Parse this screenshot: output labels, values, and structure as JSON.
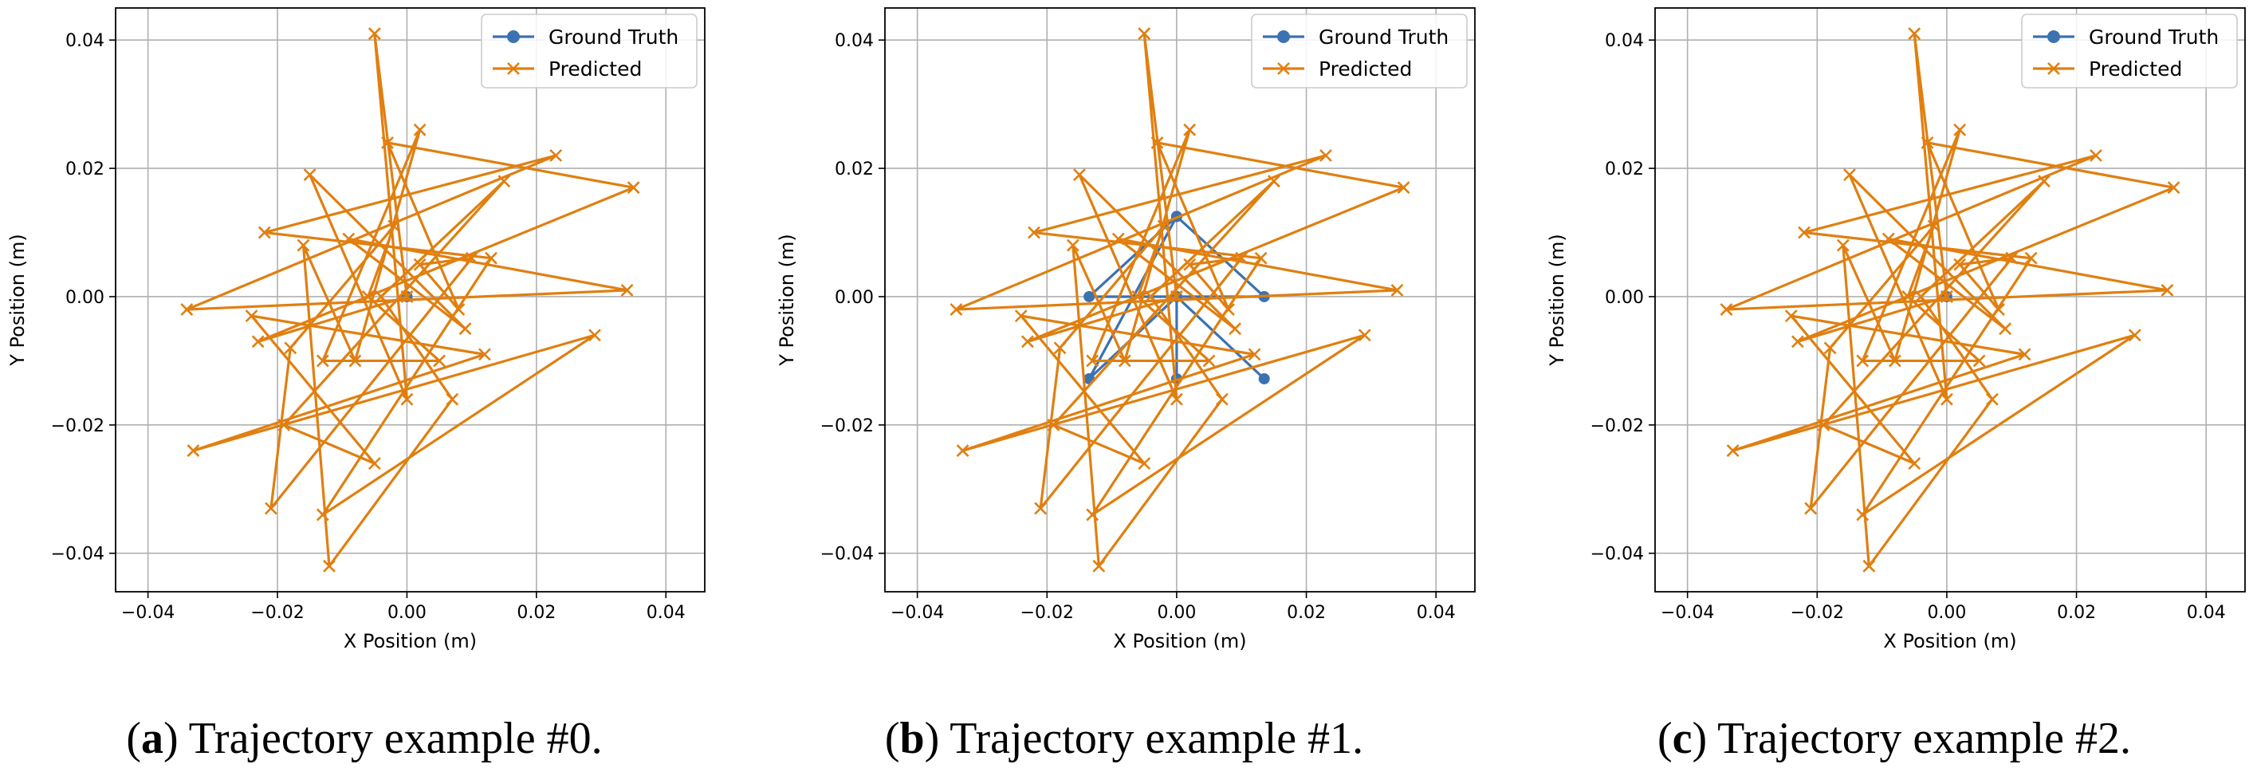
{
  "chart_data": [
    {
      "type": "line",
      "caption": {
        "letter": "a",
        "text": ") Trajectory example #0.",
        "open": "("
      },
      "xlabel": "X Position (m)",
      "ylabel": "Y Position (m)",
      "xlim": [
        -0.045,
        0.046
      ],
      "ylim": [
        -0.046,
        0.045
      ],
      "xticks": [
        "-0.04",
        "-0.02",
        "0.00",
        "0.02",
        "0.04"
      ],
      "xtick_values": [
        -0.04,
        -0.02,
        0.0,
        0.02,
        0.04
      ],
      "yticks": [
        "-0.04",
        "-0.02",
        "0.00",
        "0.02",
        "0.04"
      ],
      "ytick_values": [
        -0.04,
        -0.02,
        0.0,
        0.02,
        0.04
      ],
      "grid": true,
      "legend": {
        "position": "top-right",
        "entries": [
          "Ground Truth",
          "Predicted"
        ]
      },
      "series": [
        {
          "name": "Ground Truth",
          "color": "#3b72b0",
          "marker": "o",
          "x": [
            0.0
          ],
          "y": [
            0.0
          ]
        },
        {
          "name": "Predicted",
          "color": "#e07f10",
          "marker": "x",
          "x": [
            0.0,
            -0.005,
            0.0,
            -0.015,
            0.009,
            -0.009,
            0.034,
            -0.034,
            0.023,
            -0.022,
            0.013,
            -0.013,
            0.029,
            -0.033,
            0.012,
            -0.024,
            -0.005,
            -0.019,
            0.015,
            -0.004,
            0.007,
            -0.012,
            -0.016,
            -0.008,
            0.002,
            -0.013,
            0.005,
            -0.006,
            -0.002,
            -0.018,
            -0.021,
            0.01,
            0.002,
            0.008,
            -0.003,
            0.035,
            -0.023,
            0.0
          ],
          "y": [
            0.0,
            0.041,
            -0.016,
            0.019,
            -0.005,
            0.009,
            0.001,
            -0.002,
            0.022,
            0.01,
            0.006,
            -0.034,
            -0.006,
            -0.024,
            -0.009,
            -0.003,
            -0.026,
            -0.02,
            0.018,
            0.0,
            -0.016,
            -0.042,
            0.008,
            -0.01,
            0.026,
            -0.01,
            -0.01,
            0.0,
            0.011,
            -0.008,
            -0.033,
            0.006,
            0.005,
            -0.002,
            0.024,
            0.017,
            -0.007,
            0.0
          ]
        }
      ]
    },
    {
      "type": "line",
      "caption": {
        "letter": "b",
        "text": ") Trajectory example #1.",
        "open": "("
      },
      "xlabel": "X Position (m)",
      "ylabel": "Y Position (m)",
      "xlim": [
        -0.045,
        0.046
      ],
      "ylim": [
        -0.046,
        0.045
      ],
      "xticks": [
        "-0.04",
        "-0.02",
        "0.00",
        "0.02",
        "0.04"
      ],
      "xtick_values": [
        -0.04,
        -0.02,
        0.0,
        0.02,
        0.04
      ],
      "yticks": [
        "-0.04",
        "-0.02",
        "0.00",
        "0.02",
        "0.04"
      ],
      "ytick_values": [
        -0.04,
        -0.02,
        0.0,
        0.02,
        0.04
      ],
      "grid": true,
      "legend": {
        "position": "top-right",
        "entries": [
          "Ground Truth",
          "Predicted"
        ]
      },
      "series": [
        {
          "name": "Ground Truth",
          "color": "#3b72b0",
          "marker": "o",
          "x": [
            0.0,
            -0.0135,
            0.0,
            0.0135,
            0.0,
            -0.0135,
            0.0,
            0.0135,
            0.0,
            0.0
          ],
          "y": [
            0.0125,
            0.0,
            0.0,
            0.0,
            0.0125,
            -0.0128,
            0.0,
            -0.0128,
            0.0,
            -0.0128
          ]
        },
        {
          "name": "Predicted",
          "color": "#e07f10",
          "marker": "x",
          "x": [
            0.0,
            -0.005,
            0.0,
            -0.015,
            0.009,
            -0.009,
            0.034,
            -0.034,
            0.023,
            -0.022,
            0.013,
            -0.013,
            0.029,
            -0.033,
            0.012,
            -0.024,
            -0.005,
            -0.019,
            0.015,
            -0.004,
            0.007,
            -0.012,
            -0.016,
            -0.008,
            0.002,
            -0.013,
            0.005,
            -0.006,
            -0.002,
            -0.018,
            -0.021,
            0.01,
            0.002,
            0.008,
            -0.003,
            0.035,
            -0.023,
            0.0
          ],
          "y": [
            0.0,
            0.041,
            -0.016,
            0.019,
            -0.005,
            0.009,
            0.001,
            -0.002,
            0.022,
            0.01,
            0.006,
            -0.034,
            -0.006,
            -0.024,
            -0.009,
            -0.003,
            -0.026,
            -0.02,
            0.018,
            0.0,
            -0.016,
            -0.042,
            0.008,
            -0.01,
            0.026,
            -0.01,
            -0.01,
            0.0,
            0.011,
            -0.008,
            -0.033,
            0.006,
            0.005,
            -0.002,
            0.024,
            0.017,
            -0.007,
            0.0
          ]
        }
      ]
    },
    {
      "type": "line",
      "caption": {
        "letter": "c",
        "text": ") Trajectory example #2.",
        "open": "("
      },
      "xlabel": "X Position (m)",
      "ylabel": "Y Position (m)",
      "xlim": [
        -0.045,
        0.046
      ],
      "ylim": [
        -0.046,
        0.045
      ],
      "xticks": [
        "-0.04",
        "-0.02",
        "0.00",
        "0.02",
        "0.04"
      ],
      "xtick_values": [
        -0.04,
        -0.02,
        0.0,
        0.02,
        0.04
      ],
      "yticks": [
        "-0.04",
        "-0.02",
        "0.00",
        "0.02",
        "0.04"
      ],
      "ytick_values": [
        -0.04,
        -0.02,
        0.0,
        0.02,
        0.04
      ],
      "grid": true,
      "legend": {
        "position": "top-right",
        "entries": [
          "Ground Truth",
          "Predicted"
        ]
      },
      "series": [
        {
          "name": "Ground Truth",
          "color": "#3b72b0",
          "marker": "o",
          "x": [
            0.0
          ],
          "y": [
            0.0
          ]
        },
        {
          "name": "Predicted",
          "color": "#e07f10",
          "marker": "x",
          "x": [
            0.0,
            -0.005,
            0.0,
            -0.015,
            0.009,
            -0.009,
            0.034,
            -0.034,
            0.023,
            -0.022,
            0.013,
            -0.013,
            0.029,
            -0.033,
            0.012,
            -0.024,
            -0.005,
            -0.019,
            0.015,
            -0.004,
            0.007,
            -0.012,
            -0.016,
            -0.008,
            0.002,
            -0.013,
            0.005,
            -0.006,
            -0.002,
            -0.018,
            -0.021,
            0.01,
            0.002,
            0.008,
            -0.003,
            0.035,
            -0.023,
            0.0
          ],
          "y": [
            0.0,
            0.041,
            -0.016,
            0.019,
            -0.005,
            0.009,
            0.001,
            -0.002,
            0.022,
            0.01,
            0.006,
            -0.034,
            -0.006,
            -0.024,
            -0.009,
            -0.003,
            -0.026,
            -0.02,
            0.018,
            0.0,
            -0.016,
            -0.042,
            0.008,
            -0.01,
            0.026,
            -0.01,
            -0.01,
            0.0,
            0.011,
            -0.008,
            -0.033,
            0.006,
            0.005,
            -0.002,
            0.024,
            0.017,
            -0.007,
            0.0
          ]
        }
      ]
    }
  ]
}
